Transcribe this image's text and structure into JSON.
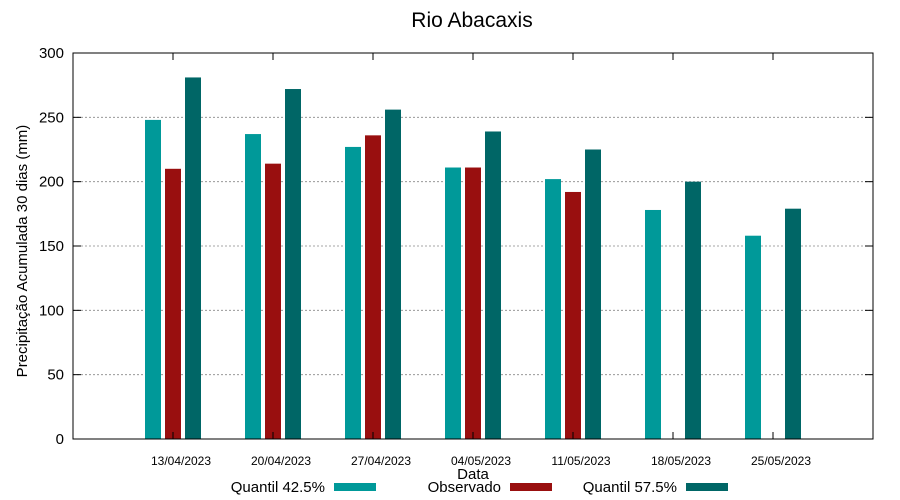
{
  "chart_data": {
    "type": "bar",
    "title": "Rio Abacaxis",
    "xlabel": "Data",
    "ylabel": "Precipitação Acumulada 30 dias (mm)",
    "ylim": [
      0,
      300
    ],
    "yticks": [
      0,
      50,
      100,
      150,
      200,
      250,
      300
    ],
    "grid": true,
    "legend_position": "bottom",
    "categories": [
      "13/04/2023",
      "20/04/2023",
      "27/04/2023",
      "04/05/2023",
      "11/05/2023",
      "18/05/2023",
      "25/05/2023"
    ],
    "series": [
      {
        "name": "Quantil 42.5%",
        "color": "#009999",
        "values": [
          248,
          237,
          227,
          211,
          202,
          178,
          158
        ]
      },
      {
        "name": "Observado",
        "color": "#990f0f",
        "values": [
          210,
          214,
          236,
          211,
          192,
          null,
          null
        ]
      },
      {
        "name": "Quantil 57.5%",
        "color": "#006666",
        "values": [
          281,
          272,
          256,
          239,
          225,
          200,
          179
        ]
      }
    ]
  }
}
